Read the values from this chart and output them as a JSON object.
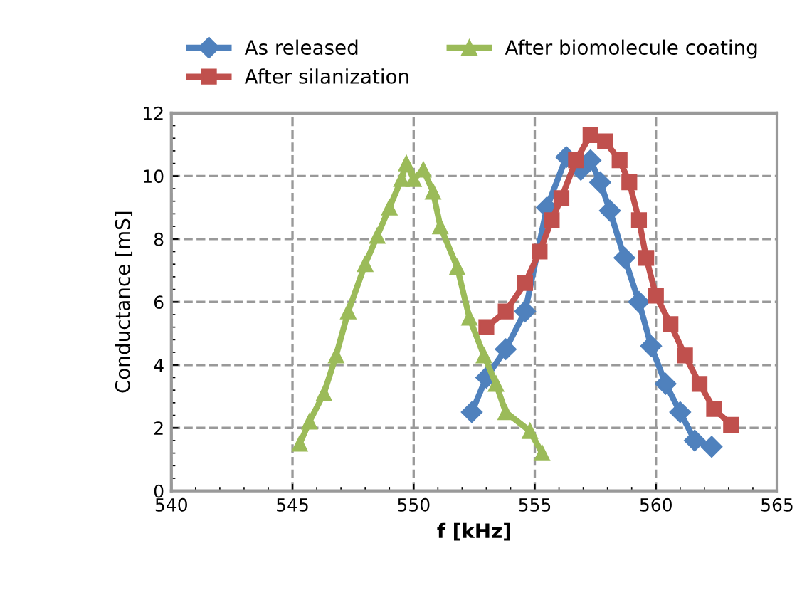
{
  "chart_data": {
    "type": "line",
    "xlabel": "f [kHz]",
    "ylabel": "Conductance [mS]",
    "xlim": [
      540,
      565
    ],
    "xticks": [
      540,
      545,
      550,
      555,
      560,
      565
    ],
    "ylim": [
      0,
      12
    ],
    "yticks": [
      0,
      2,
      4,
      6,
      8,
      10,
      12
    ],
    "grid": true,
    "legend": "top",
    "line_style": "solid",
    "series": [
      {
        "name": "As released",
        "color": "#4f81bd",
        "marker": "diamond",
        "x": [
          552.4,
          553.0,
          553.8,
          554.6,
          555.5,
          556.3,
          556.9,
          557.3,
          557.7,
          558.1,
          558.7,
          559.3,
          559.8,
          560.4,
          561.0,
          561.6,
          562.3
        ],
        "values": [
          2.5,
          3.6,
          4.5,
          5.7,
          9.0,
          10.6,
          10.2,
          10.5,
          9.8,
          8.9,
          7.4,
          6.0,
          4.6,
          3.4,
          2.5,
          1.6,
          1.4
        ]
      },
      {
        "name": "After silanization",
        "color": "#c0504d",
        "marker": "square",
        "x": [
          553.0,
          553.8,
          554.6,
          555.2,
          555.7,
          556.1,
          556.7,
          557.3,
          557.9,
          558.5,
          558.9,
          559.3,
          559.6,
          560.0,
          560.6,
          561.2,
          561.8,
          562.4,
          563.1
        ],
        "values": [
          5.2,
          5.7,
          6.6,
          7.6,
          8.6,
          9.3,
          10.5,
          11.3,
          11.1,
          10.5,
          9.8,
          8.6,
          7.4,
          6.2,
          5.3,
          4.3,
          3.4,
          2.6,
          2.1
        ]
      },
      {
        "name": "After biomolecule coating",
        "color": "#9bbb59",
        "marker": "triangle",
        "x": [
          545.3,
          545.7,
          546.3,
          546.8,
          547.3,
          548.0,
          548.5,
          549.0,
          549.5,
          549.7,
          550.0,
          550.4,
          550.8,
          551.1,
          551.8,
          552.3,
          552.9,
          553.4,
          553.8,
          554.8,
          555.3
        ],
        "values": [
          1.5,
          2.2,
          3.1,
          4.3,
          5.7,
          7.2,
          8.1,
          9.0,
          9.9,
          10.4,
          9.9,
          10.2,
          9.5,
          8.4,
          7.1,
          5.5,
          4.3,
          3.4,
          2.5,
          1.9,
          1.2
        ]
      }
    ]
  }
}
